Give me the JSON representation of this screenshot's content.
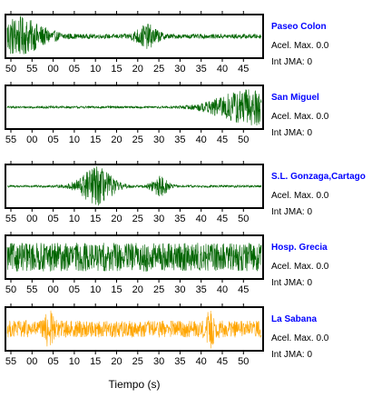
{
  "figure": {
    "xlabel": "Tiempo (s)",
    "accel_label": "Acel. Max.",
    "jma_label": "Int JMA:",
    "station_name_color": "#0000ff"
  },
  "chart_data": [
    {
      "type": "line",
      "station": "Paseo Colon",
      "accel_max": "0.0",
      "int_jma": "0",
      "color": "#006400",
      "xticks": [
        "50",
        "55",
        "00",
        "05",
        "10",
        "15",
        "20",
        "25",
        "30",
        "35",
        "40",
        "45"
      ],
      "tick_offset": 0,
      "amplitude_shape": "bursts at 00 and 33",
      "noise_level": 0.12,
      "bursts": [
        {
          "center": 2,
          "amp": 0.95,
          "width": 5
        },
        {
          "center": 33,
          "amp": 0.55,
          "width": 2
        }
      ]
    },
    {
      "type": "line",
      "station": "San Miguel",
      "accel_max": "0.0",
      "int_jma": "0",
      "color": "#006400",
      "xticks": [
        "55",
        "00",
        "05",
        "10",
        "15",
        "20",
        "25",
        "30",
        "35",
        "40",
        "45",
        "50"
      ],
      "tick_offset": 0,
      "noise_level": 0.06,
      "bursts": [
        {
          "center": 57,
          "amp": 0.95,
          "width": 6
        }
      ]
    },
    {
      "type": "line",
      "station": "S.L. Gonzaga,Cartago",
      "accel_max": "0.0",
      "int_jma": "0",
      "color": "#006400",
      "xticks": [
        "55",
        "00",
        "05",
        "10",
        "15",
        "20",
        "25",
        "30",
        "35",
        "40",
        "45",
        "50"
      ],
      "tick_offset": 0,
      "noise_level": 0.06,
      "bursts": [
        {
          "center": 21,
          "amp": 1.0,
          "width": 3
        },
        {
          "center": 36,
          "amp": 0.5,
          "width": 1.5
        }
      ]
    },
    {
      "type": "line",
      "station": "Hosp. Grecia",
      "accel_max": "0.0",
      "int_jma": "0",
      "color": "#006400",
      "xticks": [
        "50",
        "55",
        "00",
        "05",
        "10",
        "15",
        "20",
        "25",
        "30",
        "35",
        "40",
        "45"
      ],
      "tick_offset": 0,
      "noise_level": 0.75,
      "bursts": []
    },
    {
      "type": "line",
      "station": "La Sabana",
      "accel_max": "0.0",
      "int_jma": "0",
      "color": "#ffa500",
      "xticks": [
        "55",
        "00",
        "05",
        "10",
        "15",
        "20",
        "25",
        "30",
        "35",
        "40",
        "45",
        "50"
      ],
      "tick_offset": 0,
      "noise_level": 0.45,
      "bursts": [
        {
          "center": 10,
          "amp": 0.9,
          "width": 0.6
        },
        {
          "center": 48,
          "amp": 0.8,
          "width": 0.6
        }
      ]
    }
  ]
}
